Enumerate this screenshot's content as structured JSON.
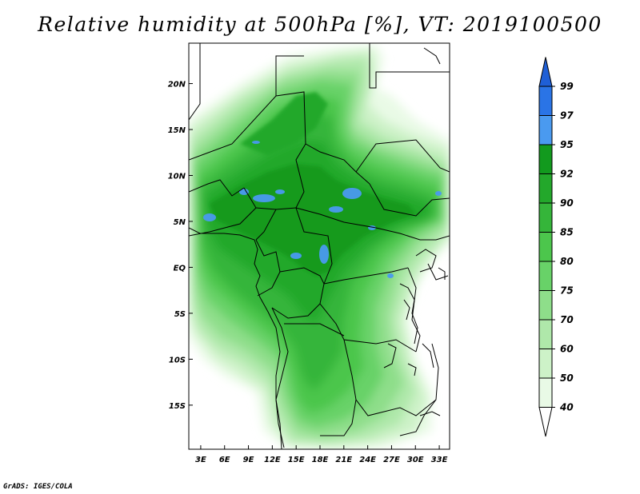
{
  "title": "Relative humidity at 500hPa [%], VT: 2019100500",
  "footer": "GrADS: IGES/COLA",
  "map": {
    "lon_ticks": [
      "3E",
      "6E",
      "9E",
      "12E",
      "15E",
      "18E",
      "21E",
      "24E",
      "27E",
      "30E",
      "33E"
    ],
    "lat_ticks": [
      "20N",
      "15N",
      "10N",
      "5N",
      "EQ",
      "5S",
      "10S",
      "15S"
    ],
    "lon_range_deg": [
      1.5,
      34.3
    ],
    "lat_range_deg": [
      -19.8,
      24.4
    ]
  },
  "colorbar": {
    "labels": [
      "99",
      "97",
      "95",
      "92",
      "90",
      "85",
      "80",
      "75",
      "70",
      "60",
      "50",
      "40"
    ],
    "colors": [
      "#1f5fd6",
      "#2a74e6",
      "#4a9af0",
      "#129a1e",
      "#23a82b",
      "#35b53a",
      "#4cc64c",
      "#68d268",
      "#8ede8a",
      "#afe8aa",
      "#cdf2c8",
      "#e9fae6",
      "#ffffff"
    ]
  }
}
